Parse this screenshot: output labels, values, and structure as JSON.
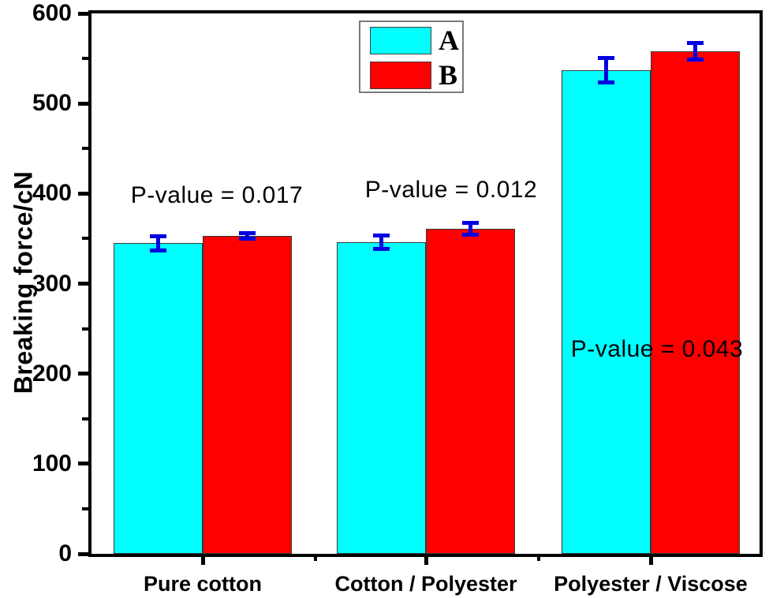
{
  "chart_data": {
    "type": "bar",
    "title": "",
    "xlabel": "",
    "ylabel": "Breaking force/cN",
    "ylim": [
      0,
      600
    ],
    "y_ticks": [
      0,
      100,
      200,
      300,
      400,
      500,
      600
    ],
    "y_minor_step": 50,
    "grid": false,
    "legend_position": "top-center",
    "categories": [
      "Pure cotton",
      "Cotton / Polyester",
      "Polyester / Viscose"
    ],
    "series": [
      {
        "name": "A",
        "color": "#00FFFF",
        "values": [
          345,
          346,
          537
        ],
        "errors": [
          10,
          10,
          16
        ]
      },
      {
        "name": "B",
        "color": "#FF0000",
        "values": [
          353,
          361,
          558
        ],
        "errors": [
          5,
          9,
          11
        ]
      }
    ],
    "error_bar_color": "#0000E0",
    "annotations": [
      {
        "text": "P-value = 0.017",
        "group": 0,
        "y": 398
      },
      {
        "text": "P-value = 0.012",
        "group": 1,
        "y": 404
      },
      {
        "text": "P-value = 0.043",
        "group": 2,
        "y": 227
      }
    ]
  },
  "colors": {
    "axis": "#000000",
    "bar_border": "#3a3a3a",
    "legend_border": "#7a7a7a",
    "text": "#000000"
  }
}
